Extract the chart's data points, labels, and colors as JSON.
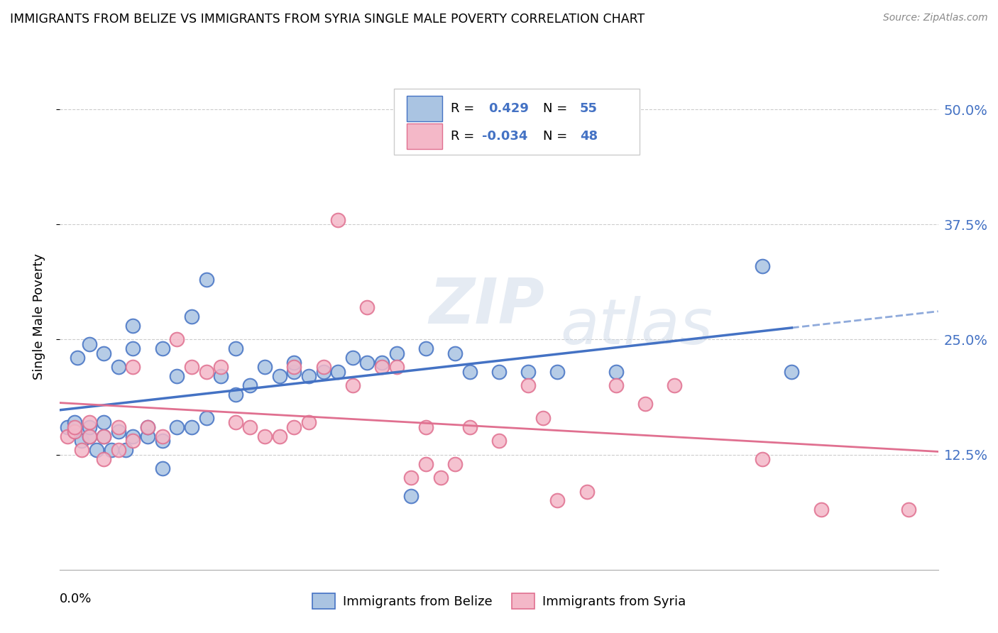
{
  "title": "IMMIGRANTS FROM BELIZE VS IMMIGRANTS FROM SYRIA SINGLE MALE POVERTY CORRELATION CHART",
  "source": "Source: ZipAtlas.com",
  "ylabel": "Single Male Poverty",
  "ytick_labels": [
    "12.5%",
    "25.0%",
    "37.5%",
    "50.0%"
  ],
  "ytick_values": [
    0.125,
    0.25,
    0.375,
    0.5
  ],
  "xlim": [
    0.0,
    0.06
  ],
  "ylim": [
    0.0,
    0.55
  ],
  "legend_r_belize": "0.429",
  "legend_n_belize": "55",
  "legend_r_syria": "-0.034",
  "legend_n_syria": "48",
  "color_belize": "#aac4e2",
  "color_syria": "#f4b8c8",
  "line_color_belize": "#4472c4",
  "line_color_syria": "#e07090",
  "watermark_zip": "ZIP",
  "watermark_atlas": "atlas",
  "belize_x": [
    0.0005,
    0.001,
    0.001,
    0.0012,
    0.0015,
    0.002,
    0.002,
    0.002,
    0.0025,
    0.003,
    0.003,
    0.003,
    0.0035,
    0.004,
    0.004,
    0.0045,
    0.005,
    0.005,
    0.005,
    0.006,
    0.006,
    0.007,
    0.007,
    0.007,
    0.008,
    0.008,
    0.009,
    0.009,
    0.01,
    0.01,
    0.011,
    0.012,
    0.012,
    0.013,
    0.014,
    0.015,
    0.016,
    0.016,
    0.017,
    0.018,
    0.019,
    0.02,
    0.021,
    0.022,
    0.023,
    0.024,
    0.025,
    0.027,
    0.028,
    0.03,
    0.032,
    0.034,
    0.038,
    0.048,
    0.05
  ],
  "belize_y": [
    0.155,
    0.15,
    0.16,
    0.23,
    0.14,
    0.145,
    0.155,
    0.245,
    0.13,
    0.145,
    0.16,
    0.235,
    0.13,
    0.15,
    0.22,
    0.13,
    0.145,
    0.24,
    0.265,
    0.145,
    0.155,
    0.11,
    0.14,
    0.24,
    0.155,
    0.21,
    0.155,
    0.275,
    0.165,
    0.315,
    0.21,
    0.19,
    0.24,
    0.2,
    0.22,
    0.21,
    0.215,
    0.225,
    0.21,
    0.215,
    0.215,
    0.23,
    0.225,
    0.225,
    0.235,
    0.08,
    0.24,
    0.235,
    0.215,
    0.215,
    0.215,
    0.215,
    0.215,
    0.33,
    0.215
  ],
  "syria_x": [
    0.0005,
    0.001,
    0.001,
    0.0015,
    0.002,
    0.002,
    0.003,
    0.003,
    0.004,
    0.004,
    0.005,
    0.005,
    0.006,
    0.007,
    0.008,
    0.009,
    0.01,
    0.011,
    0.012,
    0.013,
    0.014,
    0.015,
    0.016,
    0.016,
    0.017,
    0.018,
    0.019,
    0.02,
    0.021,
    0.022,
    0.023,
    0.024,
    0.025,
    0.025,
    0.026,
    0.027,
    0.028,
    0.03,
    0.032,
    0.033,
    0.034,
    0.036,
    0.038,
    0.04,
    0.042,
    0.048,
    0.052,
    0.058
  ],
  "syria_y": [
    0.145,
    0.15,
    0.155,
    0.13,
    0.145,
    0.16,
    0.12,
    0.145,
    0.13,
    0.155,
    0.14,
    0.22,
    0.155,
    0.145,
    0.25,
    0.22,
    0.215,
    0.22,
    0.16,
    0.155,
    0.145,
    0.145,
    0.155,
    0.22,
    0.16,
    0.22,
    0.38,
    0.2,
    0.285,
    0.22,
    0.22,
    0.1,
    0.115,
    0.155,
    0.1,
    0.115,
    0.155,
    0.14,
    0.2,
    0.165,
    0.075,
    0.085,
    0.2,
    0.18,
    0.2,
    0.12,
    0.065,
    0.065
  ]
}
